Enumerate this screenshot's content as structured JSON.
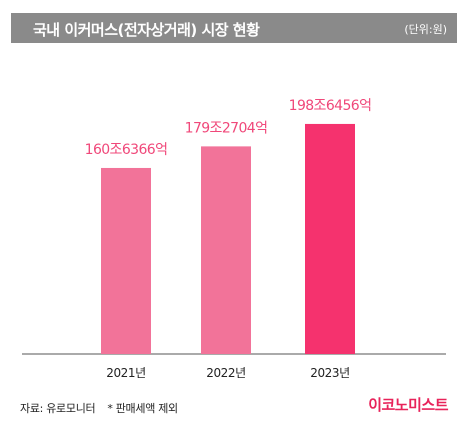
{
  "header": {
    "title": "국내 이커머스(전자상거래) 시장 현황",
    "unit": "(단위:원)"
  },
  "footer": {
    "source": "자료: 유로모니터",
    "note": "* 판매세액 제외",
    "brand": "이코노미스트"
  },
  "colors": {
    "title_bar": "#8a8a8a",
    "bar_light": "#f27399",
    "bar_highlight": "#f5326e",
    "label": "#f0487a",
    "brand": "#e8235a"
  },
  "chart_data": {
    "type": "bar",
    "categories": [
      "2021년",
      "2022년",
      "2023년"
    ],
    "values": [
      160.6366,
      179.2704,
      198.6456
    ],
    "value_labels": [
      "160조6366억",
      "179조2704억",
      "198조6456억"
    ],
    "title": "국내 이커머스(전자상거래) 시장 현황",
    "xlabel": "",
    "ylabel": "",
    "unit": "(단위:원)",
    "ylim": [
      0,
      215
    ],
    "grid": false,
    "legend": "none"
  }
}
